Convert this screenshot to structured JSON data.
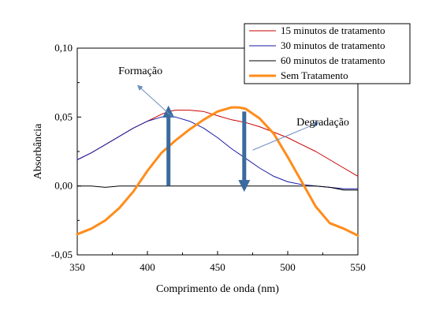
{
  "chart_data": {
    "type": "line",
    "xlabel": "Comprimento de onda (nm)",
    "ylabel": "Absorbância",
    "xlim": [
      350,
      550
    ],
    "ylim": [
      -0.05,
      0.1
    ],
    "xticks": [
      350,
      400,
      450,
      500,
      550
    ],
    "yticks": [
      -0.05,
      0.0,
      0.05,
      0.1
    ],
    "xtick_labels": [
      "350",
      "400",
      "450",
      "500",
      "550"
    ],
    "ytick_labels": [
      "-0,05",
      "0,00",
      "0,05",
      "0,10"
    ],
    "grid": false,
    "legend_position": "top-right",
    "series": [
      {
        "name": "15 minutos de tratamento",
        "color": "#cc0000",
        "x": [
          350,
          360,
          370,
          380,
          390,
          400,
          410,
          415,
          420,
          430,
          440,
          450,
          460,
          470,
          480,
          490,
          500,
          510,
          520,
          530,
          540,
          550
        ],
        "y": [
          0.019,
          0.024,
          0.03,
          0.036,
          0.042,
          0.047,
          0.052,
          0.054,
          0.055,
          0.055,
          0.054,
          0.051,
          0.048,
          0.046,
          0.043,
          0.039,
          0.035,
          0.03,
          0.025,
          0.019,
          0.013,
          0.007
        ]
      },
      {
        "name": "30 minutos de tratamento",
        "color": "#1a1aaa",
        "x": [
          350,
          360,
          370,
          380,
          390,
          400,
          410,
          420,
          430,
          440,
          450,
          460,
          470,
          480,
          490,
          500,
          510,
          520,
          530,
          540,
          550
        ],
        "y": [
          0.019,
          0.024,
          0.03,
          0.036,
          0.042,
          0.047,
          0.05,
          0.05,
          0.047,
          0.042,
          0.035,
          0.027,
          0.02,
          0.013,
          0.007,
          0.003,
          0.001,
          0.0,
          -0.001,
          -0.002,
          -0.002
        ]
      },
      {
        "name": "60 minutos de tratamento",
        "color": "#000000",
        "x": [
          350,
          360,
          370,
          380,
          390,
          400,
          410,
          420,
          430,
          440,
          450,
          460,
          470,
          480,
          490,
          500,
          510,
          520,
          530,
          540,
          550
        ],
        "y": [
          0.0,
          0.0,
          -0.001,
          0.0,
          0.0,
          0.0,
          0.0,
          0.0,
          0.0,
          0.0,
          0.0,
          0.0,
          0.0,
          0.0,
          0.0,
          0.0,
          0.0,
          0.0,
          -0.001,
          -0.003,
          -0.003
        ]
      },
      {
        "name": "Sem Tratamento",
        "color": "#ff8c1a",
        "x": [
          350,
          360,
          370,
          380,
          390,
          400,
          410,
          420,
          430,
          440,
          450,
          460,
          465,
          470,
          480,
          490,
          500,
          510,
          520,
          530,
          540,
          550
        ],
        "y": [
          -0.035,
          -0.031,
          -0.025,
          -0.016,
          -0.004,
          0.011,
          0.024,
          0.033,
          0.041,
          0.048,
          0.054,
          0.057,
          0.057,
          0.056,
          0.049,
          0.038,
          0.021,
          0.003,
          -0.015,
          -0.027,
          -0.031,
          -0.036
        ]
      }
    ],
    "annotations": [
      {
        "text": "Formação",
        "color": "#000000",
        "label_x": 395,
        "label_y": 0.081,
        "arrow_from": [
          418,
          0.05
        ],
        "arrow_to": [
          393,
          0.073
        ]
      },
      {
        "text": "Degradação",
        "color": "#000000",
        "label_x": 525,
        "label_y": 0.044,
        "arrow_from": [
          475,
          0.026
        ],
        "arrow_to": [
          522,
          0.046
        ]
      }
    ],
    "vertical_arrows": [
      {
        "x": 415,
        "y_from": 0.0,
        "y_to": 0.054,
        "color": "#3a6a9e"
      },
      {
        "x": 469,
        "y_from": 0.054,
        "y_to": 0.0,
        "color": "#3a6a9e"
      }
    ]
  }
}
